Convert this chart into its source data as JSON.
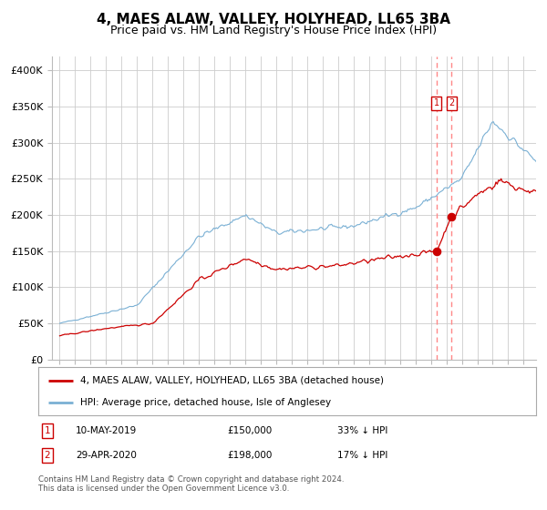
{
  "title": "4, MAES ALAW, VALLEY, HOLYHEAD, LL65 3BA",
  "subtitle": "Price paid vs. HM Land Registry's House Price Index (HPI)",
  "title_fontsize": 11,
  "subtitle_fontsize": 9,
  "hpi_color": "#7ab0d4",
  "price_color": "#cc0000",
  "marker_color": "#cc0000",
  "vline_color": "#ff8888",
  "annotation_box_color": "#cc0000",
  "background_color": "#ffffff",
  "grid_color": "#cccccc",
  "ylabel_ticks": [
    "£0",
    "£50K",
    "£100K",
    "£150K",
    "£200K",
    "£250K",
    "£300K",
    "£350K",
    "£400K"
  ],
  "ytick_values": [
    0,
    50000,
    100000,
    150000,
    200000,
    250000,
    300000,
    350000,
    400000
  ],
  "ylim": [
    0,
    420000
  ],
  "xlim_start": 1994.5,
  "xlim_end": 2025.8,
  "sale1_date": 2019.36,
  "sale1_price": 150000,
  "sale1_label": "10-MAY-2019",
  "sale1_pct": "33% ↓ HPI",
  "sale2_date": 2020.33,
  "sale2_price": 198000,
  "sale2_label": "29-APR-2020",
  "sale2_pct": "17% ↓ HPI",
  "legend_label_red": "4, MAES ALAW, VALLEY, HOLYHEAD, LL65 3BA (detached house)",
  "legend_label_blue": "HPI: Average price, detached house, Isle of Anglesey",
  "footer1": "Contains HM Land Registry data © Crown copyright and database right 2024.",
  "footer2": "This data is licensed under the Open Government Licence v3.0.",
  "sale1_hpi": 223881,
  "sale2_hpi": 238554
}
